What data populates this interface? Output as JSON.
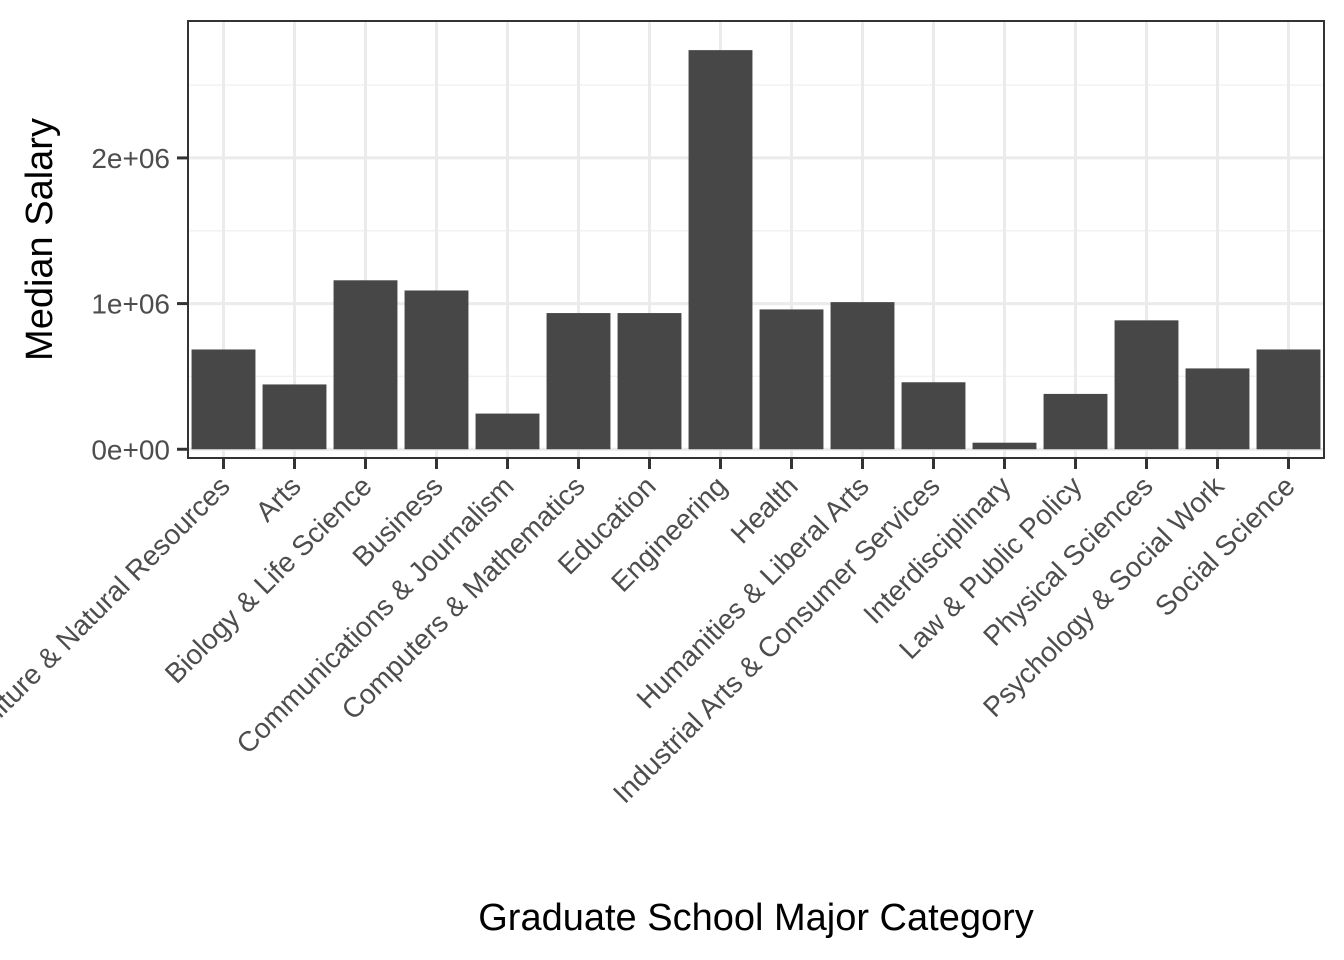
{
  "chart_data": {
    "type": "bar",
    "title": "",
    "xlabel": "Graduate School Major Category",
    "ylabel": "Median Salary",
    "categories": [
      "Agriculture & Natural Resources",
      "Arts",
      "Biology & Life Science",
      "Business",
      "Communications & Journalism",
      "Computers & Mathematics",
      "Education",
      "Engineering",
      "Health",
      "Humanities & Liberal Arts",
      "Industrial Arts & Consumer Services",
      "Interdisciplinary",
      "Law & Public Policy",
      "Physical Sciences",
      "Psychology & Social Work",
      "Social Science"
    ],
    "values": [
      685000,
      445000,
      1160000,
      1090000,
      245000,
      935000,
      935000,
      2740000,
      960000,
      1010000,
      460000,
      45000,
      380000,
      885000,
      555000,
      685000
    ],
    "ylim": [
      -60000,
      2940000
    ],
    "yticks": [
      0,
      1000000,
      2000000
    ],
    "ytick_labels": [
      "0e+00",
      "1e+06",
      "2e+06"
    ],
    "grid": true,
    "legend": "none",
    "colors": {
      "bar": "#474747",
      "panel_border": "#333333",
      "grid_major": "#ebebeb",
      "grid_minor": "#f2f2f2",
      "tick_text": "#4d4d4d",
      "title_text": "#000000"
    }
  }
}
